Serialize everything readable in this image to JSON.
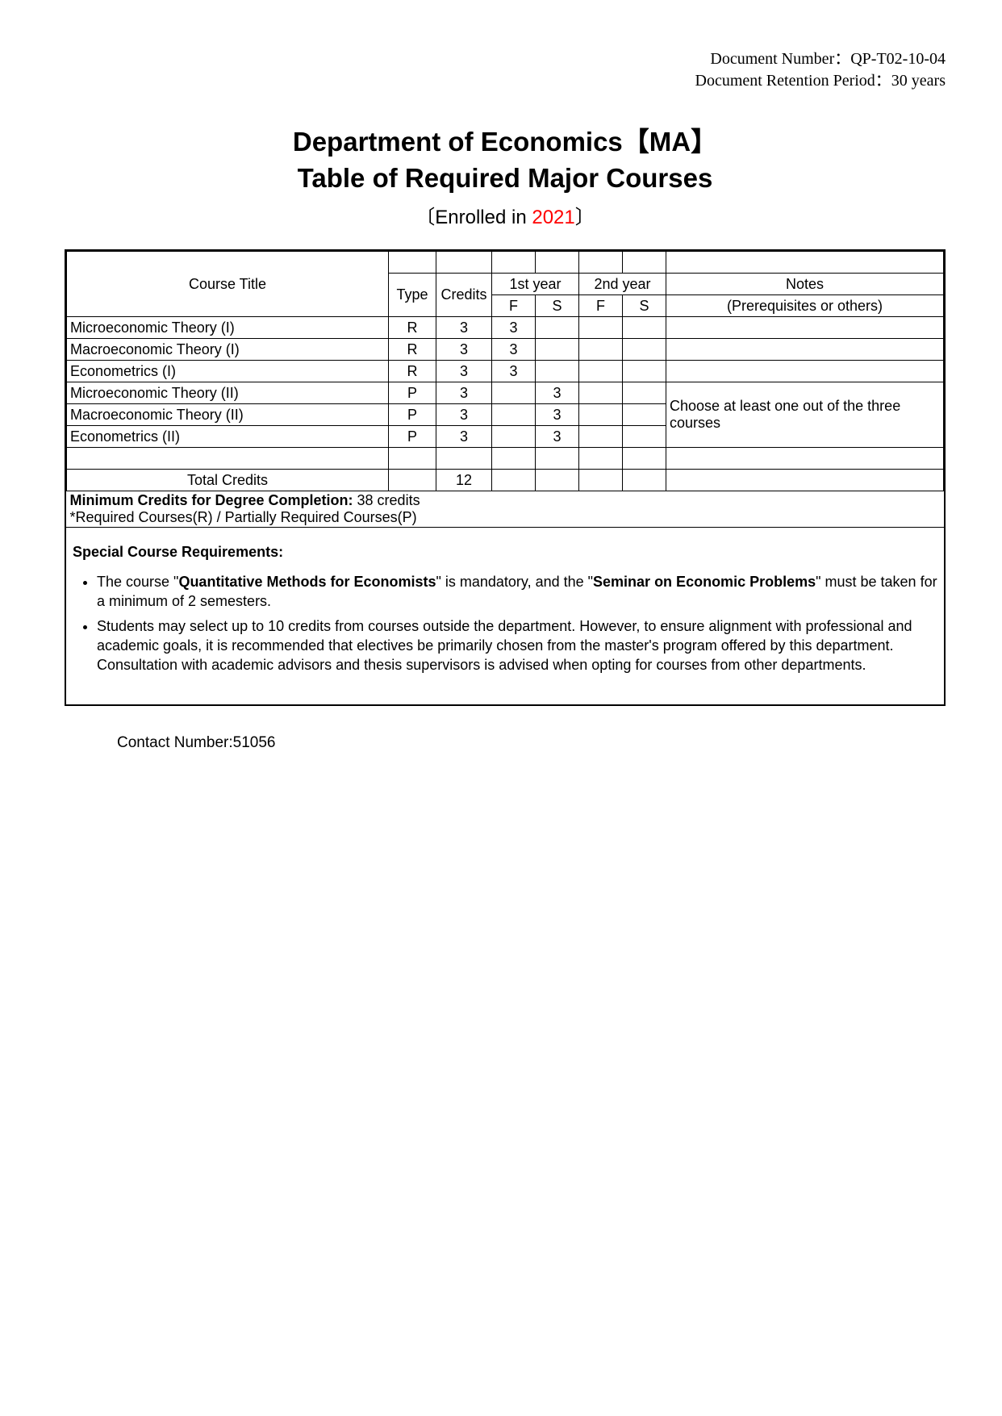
{
  "meta": {
    "doc_number_label": "Document Number：",
    "doc_number_value": "QP-T02-10-04",
    "retention_label": "Document Retention Period：",
    "retention_value": "30 years"
  },
  "title": {
    "line1": "Department of Economics【MA】",
    "line2": "Table of Required Major Courses",
    "enroll_prefix": "〔Enrolled in ",
    "enroll_year": "2021",
    "enroll_suffix": "〕"
  },
  "headers": {
    "course_title": "Course Title",
    "type": "Type",
    "credits": "Credits",
    "year1": "1st year",
    "year2": "2nd year",
    "F": "F",
    "S": "S",
    "notes": "Notes",
    "notes_sub": "(Prerequisites or others)"
  },
  "rows": [
    {
      "title": "Microeconomic Theory (I)",
      "type": "R",
      "credits": "3",
      "y1f": "3",
      "y1s": "",
      "y2f": "",
      "y2s": "",
      "note": ""
    },
    {
      "title": "Macroeconomic Theory (I)",
      "type": "R",
      "credits": "3",
      "y1f": "3",
      "y1s": "",
      "y2f": "",
      "y2s": "",
      "note": ""
    },
    {
      "title": "Econometrics (I)",
      "type": "R",
      "credits": "3",
      "y1f": "3",
      "y1s": "",
      "y2f": "",
      "y2s": "",
      "note": ""
    },
    {
      "title": "Microeconomic Theory (II)",
      "type": "P",
      "credits": "3",
      "y1f": "",
      "y1s": "3",
      "y2f": "",
      "y2s": ""
    },
    {
      "title": "Macroeconomic Theory (II)",
      "type": "P",
      "credits": "3",
      "y1f": "",
      "y1s": "3",
      "y2f": "",
      "y2s": ""
    },
    {
      "title": "Econometrics (II)",
      "type": "P",
      "credits": "3",
      "y1f": "",
      "y1s": "3",
      "y2f": "",
      "y2s": ""
    }
  ],
  "group_note": "Choose at least one out of the three courses",
  "total": {
    "label": "Total Credits",
    "value": "12"
  },
  "footer_line1_a": "Minimum Credits for Degree Completion: ",
  "footer_line1_b": "38 credits",
  "footer_line2": "*Required Courses(R) / Partially Required Courses(P)",
  "requirements": {
    "heading": "Special Course Requirements:",
    "b1_a": "The course \"",
    "b1_b": "Quantitative Methods for Economists",
    "b1_c": "\" is mandatory, and the \"",
    "b1_d": "Seminar on Economic Problems",
    "b1_e": "\" must be taken for a minimum of 2 semesters.",
    "b2": "Students may select up to 10 credits from courses outside the department. However, to ensure alignment with professional and academic goals, it is recommended that electives be primarily chosen from the master's program offered by this department. Consultation with academic advisors and thesis supervisors is advised when opting for courses from other departments."
  },
  "contact": {
    "label": "Contact Number:",
    "value": "51056"
  }
}
